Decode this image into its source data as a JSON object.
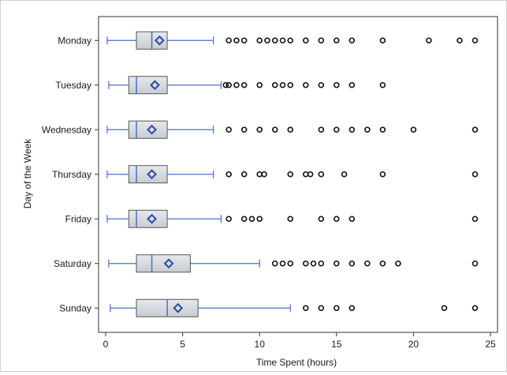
{
  "chart_data": {
    "type": "boxplot",
    "xlabel": "Time Spent (hours)",
    "ylabel": "Day of the Week",
    "xlim": [
      0,
      25
    ],
    "xticks": [
      0,
      5,
      10,
      15,
      20,
      25
    ],
    "grid": false,
    "box_fill": "#c9ccd3",
    "whisker_color": "#4a6fc7",
    "mean_marker_color": "#2e4a9e",
    "outlier_color": "#111111",
    "categories": [
      "Monday",
      "Tuesday",
      "Wednesday",
      "Thursday",
      "Friday",
      "Saturday",
      "Sunday"
    ],
    "series": [
      {
        "category": "Monday",
        "min": 0.1,
        "q1": 2.0,
        "median": 3.0,
        "q3": 4.0,
        "max": 7.0,
        "mean": 3.5,
        "outliers": [
          8,
          8.5,
          9,
          10,
          10.5,
          11,
          11.5,
          12,
          13,
          14,
          15,
          16,
          18,
          21,
          23,
          24
        ]
      },
      {
        "category": "Tuesday",
        "min": 0.2,
        "q1": 1.5,
        "median": 2.0,
        "q3": 4.0,
        "max": 7.5,
        "mean": 3.2,
        "outliers": [
          7.8,
          8,
          8.5,
          9,
          10,
          11,
          11.5,
          12,
          13,
          14,
          15,
          16,
          18
        ]
      },
      {
        "category": "Wednesday",
        "min": 0.1,
        "q1": 1.5,
        "median": 2.0,
        "q3": 4.0,
        "max": 7.0,
        "mean": 3.0,
        "outliers": [
          8,
          9,
          10,
          11,
          12,
          14,
          15,
          16,
          17,
          18,
          20,
          24
        ]
      },
      {
        "category": "Thursday",
        "min": 0.1,
        "q1": 1.5,
        "median": 2.0,
        "q3": 4.0,
        "max": 7.0,
        "mean": 3.0,
        "outliers": [
          8,
          9,
          10,
          10.3,
          12,
          13,
          13.3,
          14,
          15.5,
          18,
          24
        ]
      },
      {
        "category": "Friday",
        "min": 0.1,
        "q1": 1.5,
        "median": 2.0,
        "q3": 4.0,
        "max": 7.5,
        "mean": 3.0,
        "outliers": [
          8,
          9,
          9.5,
          10,
          12,
          14,
          15,
          16,
          24
        ]
      },
      {
        "category": "Saturday",
        "min": 0.2,
        "q1": 2.0,
        "median": 3.0,
        "q3": 5.5,
        "max": 10.0,
        "mean": 4.1,
        "outliers": [
          11,
          11.5,
          12,
          13,
          13.5,
          14,
          15,
          16,
          17,
          18,
          19,
          24
        ]
      },
      {
        "category": "Sunday",
        "min": 0.3,
        "q1": 2.0,
        "median": 4.0,
        "q3": 6.0,
        "max": 12.0,
        "mean": 4.7,
        "outliers": [
          13,
          14,
          15,
          16,
          22,
          24
        ]
      }
    ]
  }
}
